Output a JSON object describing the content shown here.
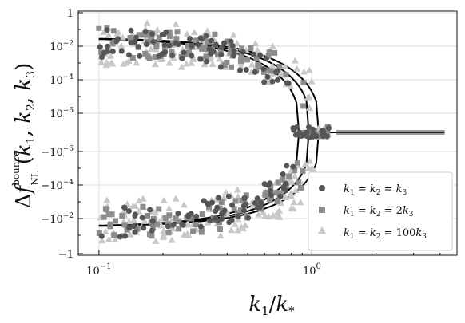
{
  "chart_data": {
    "type": "scatter",
    "title": "",
    "xlabel": "k1/k*",
    "ylabel": "Δf_NL^bounce(k1, k2, k3)",
    "x_scale": "log",
    "xlim": [
      0.08,
      4.8
    ],
    "y_scale": "symlog",
    "y_ticks": [
      "1",
      "10^-2",
      "10^-4",
      "10^-6",
      "−10^-6",
      "−10^-4",
      "−10^-2",
      "−1"
    ],
    "x_ticks": [
      "10^-1",
      "10^0"
    ],
    "grid": true,
    "legend_position": "lower-right",
    "legend": [
      {
        "label": "k1 = k2 = k3",
        "marker": "circle",
        "color": "#555555"
      },
      {
        "label": "k1 = k2 = 2k3",
        "marker": "square",
        "color": "#8c8c8c"
      },
      {
        "label": "k1 = k2 = 100k3",
        "marker": "triangle",
        "color": "#c4c4c4"
      }
    ],
    "plateau_value_at_large_k": "1e-5 (approx)",
    "envelope_curves": {
      "description": "black lines: |Δf| decays from ~10^-1.5 at k1/k*=0.1 to the plateau near k1/k*≈1.2, upper branch positive, lower branch negative",
      "x": [
        0.1,
        0.15,
        0.2,
        0.3,
        0.4,
        0.5,
        0.6,
        0.7,
        0.8,
        0.9,
        1.0,
        1.2,
        1.5,
        2.0,
        3.0,
        4.2
      ]
    },
    "series": [
      {
        "name": "k1 = k2 = k3",
        "marker": "circle"
      },
      {
        "name": "k1 = k2 = 2k3",
        "marker": "square"
      },
      {
        "name": "k1 = k2 = 100k3",
        "marker": "triangle"
      }
    ]
  },
  "colors": {
    "series1": "#555555",
    "series2": "#8c8c8c",
    "series3": "#c8c8c8",
    "line": "#000000",
    "grid": "#dddddd"
  }
}
